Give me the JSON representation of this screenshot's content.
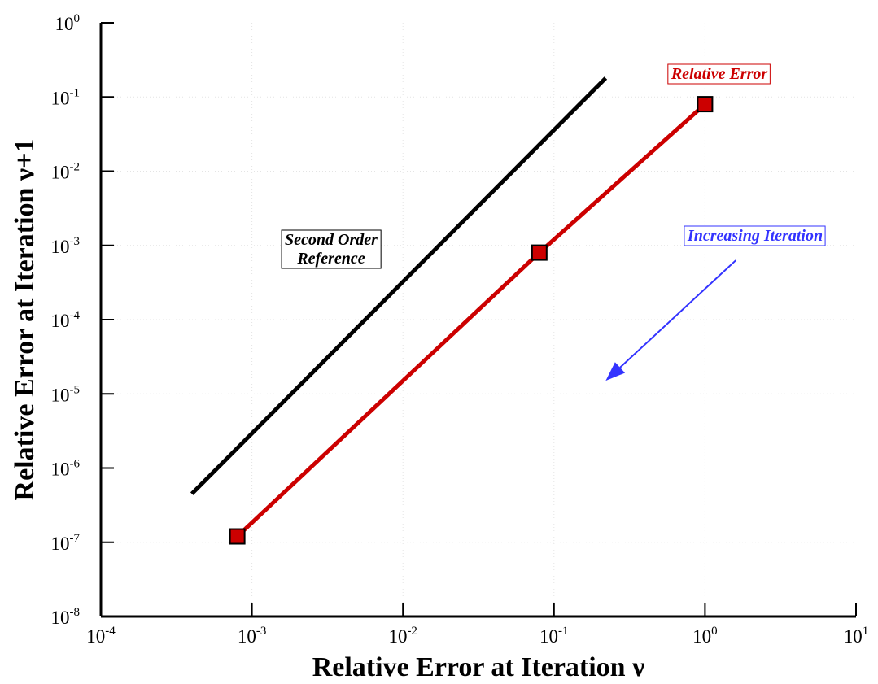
{
  "chart_data": {
    "type": "line",
    "log_x": true,
    "log_y": true,
    "xlabel": "Relative Error at Iteration ν",
    "ylabel": "Relative Error at Iteration ν+1",
    "xlim": [
      0.0001,
      10
    ],
    "ylim": [
      1e-08,
      1
    ],
    "x_ticks": [
      {
        "base": "10",
        "exp": "-4"
      },
      {
        "base": "10",
        "exp": "-3"
      },
      {
        "base": "10",
        "exp": "-2"
      },
      {
        "base": "10",
        "exp": "-1"
      },
      {
        "base": "10",
        "exp": "0"
      },
      {
        "base": "10",
        "exp": "1"
      }
    ],
    "y_ticks": [
      {
        "base": "10",
        "exp": "-8"
      },
      {
        "base": "10",
        "exp": "-7"
      },
      {
        "base": "10",
        "exp": "-6"
      },
      {
        "base": "10",
        "exp": "-5"
      },
      {
        "base": "10",
        "exp": "-4"
      },
      {
        "base": "10",
        "exp": "-3"
      },
      {
        "base": "10",
        "exp": "-2"
      },
      {
        "base": "10",
        "exp": "-1"
      },
      {
        "base": "10",
        "exp": "0"
      }
    ],
    "grid": true,
    "series": [
      {
        "name": "Relative Error",
        "color": "#cc0000",
        "marker": "square",
        "x": [
          0.0008,
          0.08,
          1.0
        ],
        "y": [
          1.2e-07,
          0.0008,
          0.08
        ]
      },
      {
        "name": "Second Order Reference",
        "color": "#000000",
        "marker": "none",
        "x": [
          0.0004,
          0.22
        ],
        "y": [
          4.5e-07,
          0.18
        ]
      }
    ],
    "annotations": [
      {
        "text": "Relative Error",
        "color": "#cc0000"
      },
      {
        "text_lines": [
          "Second Order",
          "Reference"
        ],
        "color": "#000000"
      },
      {
        "text": "Increasing Iteration",
        "color": "#3333ff"
      }
    ],
    "arrow": {
      "color": "#3333ff",
      "from": [
        1.6,
        0.00063
      ],
      "to": [
        0.22,
        1.5e-05
      ]
    }
  }
}
